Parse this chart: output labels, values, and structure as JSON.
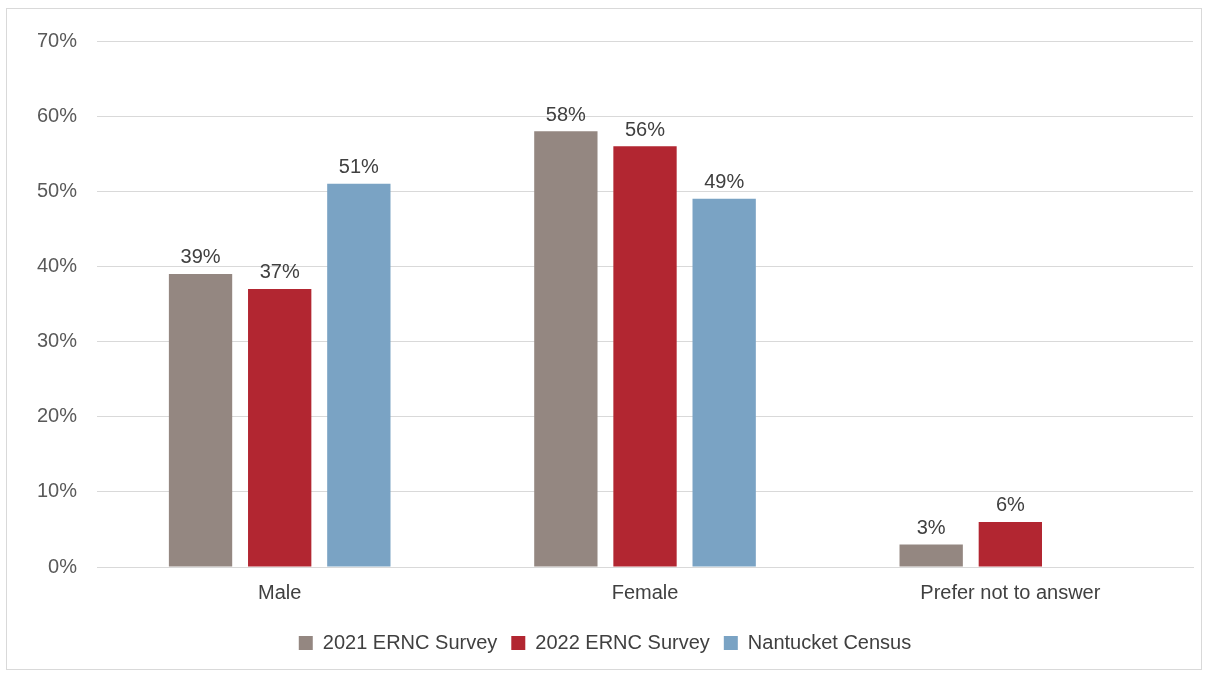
{
  "chart_data": {
    "type": "bar",
    "categories": [
      "Male",
      "Female",
      "Prefer not to answer"
    ],
    "series": [
      {
        "name": "2021 ERNC Survey",
        "color": "#948781",
        "values": [
          39,
          58,
          3
        ],
        "value_labels": [
          "39%",
          "58%",
          "3%"
        ]
      },
      {
        "name": "2022 ERNC Survey",
        "color": "#b22631",
        "values": [
          37,
          56,
          6
        ],
        "value_labels": [
          "37%",
          "56%",
          "6%"
        ]
      },
      {
        "name": "Nantucket Census",
        "color": "#7aa3c4",
        "values": [
          51,
          49,
          null
        ],
        "value_labels": [
          "51%",
          "49%",
          null
        ]
      }
    ],
    "ylim": [
      0,
      70
    ],
    "yticks": [
      {
        "value": 0,
        "label": "0%"
      },
      {
        "value": 10,
        "label": "10%"
      },
      {
        "value": 20,
        "label": "20%"
      },
      {
        "value": 30,
        "label": "30%"
      },
      {
        "value": 40,
        "label": "40%"
      },
      {
        "value": 50,
        "label": "50%"
      },
      {
        "value": 60,
        "label": "60%"
      },
      {
        "value": 70,
        "label": "70%"
      }
    ],
    "grid": "y",
    "legend": "bottom"
  }
}
